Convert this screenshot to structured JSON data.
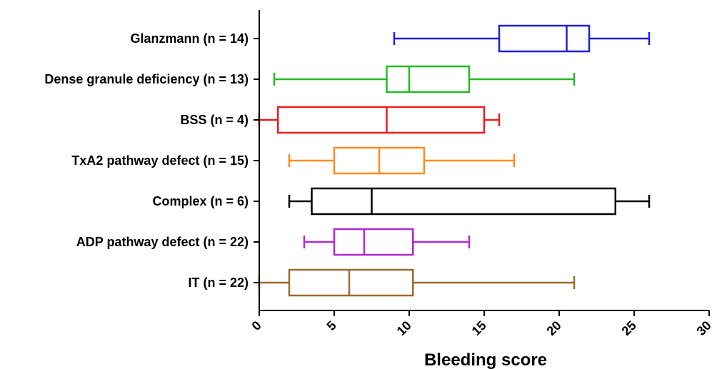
{
  "chart_data": {
    "type": "boxplot",
    "orientation": "horizontal",
    "xlabel": "Bleeding score",
    "xlim": [
      0,
      30
    ],
    "xticks": [
      0,
      5,
      10,
      15,
      20,
      25,
      30
    ],
    "grid": false,
    "series": [
      {
        "label": "Glanzmann (n = 14)",
        "color": "#1f1fe0",
        "min": 9,
        "q1": 16,
        "median": 20.5,
        "q3": 22,
        "max": 26
      },
      {
        "label": "Dense granule deficiency (n = 13)",
        "color": "#22bb22",
        "min": 1,
        "q1": 8.5,
        "median": 10,
        "q3": 14,
        "max": 21
      },
      {
        "label": "BSS (n = 4)",
        "color": "#ee1c1c",
        "min": 0,
        "q1": 1.25,
        "median": 8.5,
        "q3": 15,
        "max": 16
      },
      {
        "label": "TxA2 pathway defect (n = 15)",
        "color": "#ff8c1a",
        "min": 2,
        "q1": 5,
        "median": 8,
        "q3": 11,
        "max": 17
      },
      {
        "label": "Complex (n = 6)",
        "color": "#000000",
        "min": 2,
        "q1": 3.5,
        "median": 7.5,
        "q3": 23.75,
        "max": 26
      },
      {
        "label": "ADP pathway defect (n = 22)",
        "color": "#b425d6",
        "min": 3,
        "q1": 5,
        "median": 7,
        "q3": 10.25,
        "max": 14
      },
      {
        "label": "IT (n = 22)",
        "color": "#9b6a2e",
        "min": 0,
        "q1": 2,
        "median": 6,
        "q3": 10.25,
        "max": 21
      }
    ]
  }
}
